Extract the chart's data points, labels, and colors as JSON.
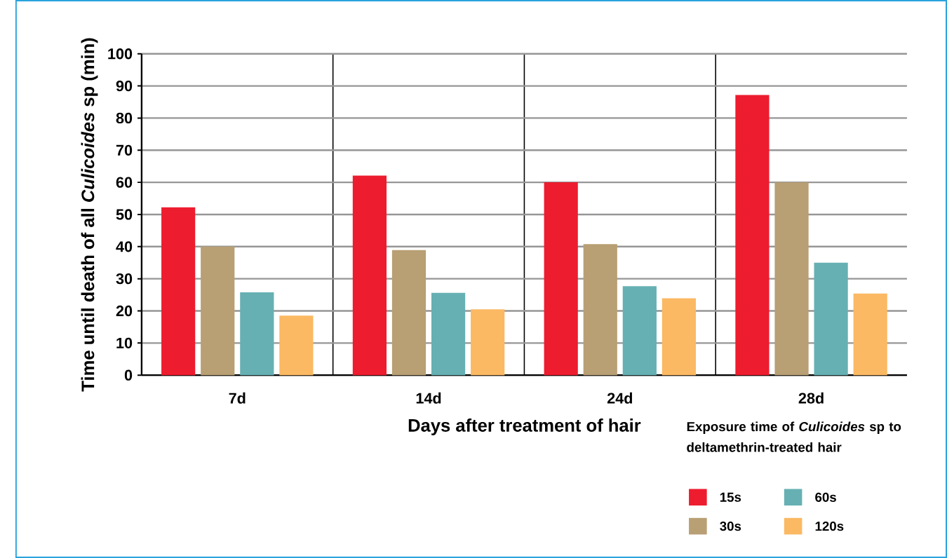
{
  "chart_data": {
    "type": "bar",
    "xlabel": "Days after treatment of hair",
    "ylabel": "Time until death of all *Culicoides* sp (min)",
    "legend_title": "Exposure time of *Culicoides* sp to deltamethrin-treated hair",
    "categories": [
      "7d",
      "14d",
      "24d",
      "28d"
    ],
    "series": [
      {
        "name": "15s",
        "color": "#ed1c2e",
        "values": [
          52.2,
          62.1,
          60,
          87.2
        ]
      },
      {
        "name": "30s",
        "color": "#b89f74",
        "values": [
          40,
          38.9,
          40.8,
          60
        ]
      },
      {
        "name": "60s",
        "color": "#66b0b3",
        "values": [
          25.8,
          25.6,
          27.7,
          35
        ]
      },
      {
        "name": "120s",
        "color": "#fbb963",
        "values": [
          18.5,
          20.5,
          23.9,
          25.4
        ]
      }
    ],
    "ylim": [
      0,
      100
    ],
    "yticks": [
      0,
      10,
      20,
      30,
      40,
      50,
      60,
      70,
      80,
      90,
      100
    ],
    "grid": "y",
    "legend": "bottom right"
  }
}
